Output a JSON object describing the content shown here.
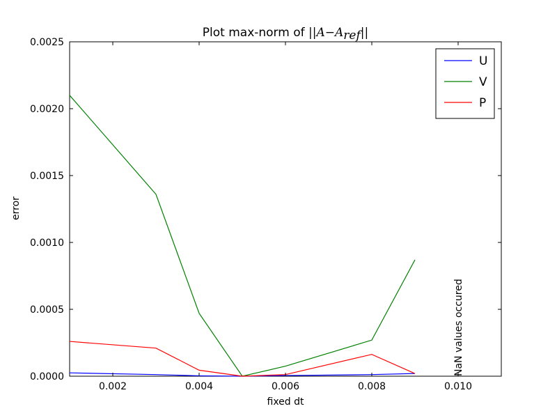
{
  "chart_data": {
    "type": "line",
    "title": "Plot max-norm of ",
    "title_math": "||A−A",
    "title_math_sub": "ref",
    "title_math_end": "||",
    "xlabel": "fixed dt",
    "ylabel": "error",
    "xlim": [
      0.001,
      0.011
    ],
    "ylim": [
      0.0,
      0.0025
    ],
    "xticks": [
      0.002,
      0.004,
      0.006,
      0.008,
      0.01
    ],
    "xtick_labels": [
      "0.002",
      "0.004",
      "0.006",
      "0.008",
      "0.010"
    ],
    "yticks": [
      0.0,
      0.0005,
      0.001,
      0.0015,
      0.002,
      0.0025
    ],
    "ytick_labels": [
      "0.0000",
      "0.0005",
      "0.0010",
      "0.0015",
      "0.0020",
      "0.0025"
    ],
    "x": [
      0.001,
      0.003,
      0.004,
      0.005,
      0.006,
      0.008,
      0.009
    ],
    "series": [
      {
        "name": "U",
        "color": "#0000ff",
        "values": [
          2.5e-05,
          1.2e-05,
          3e-06,
          0.0,
          5e-06,
          1.2e-05,
          2e-05
        ]
      },
      {
        "name": "V",
        "color": "#008000",
        "values": [
          0.0021,
          0.00136,
          0.00047,
          0.0,
          7.5e-05,
          0.00027,
          0.00087
        ]
      },
      {
        "name": "P",
        "color": "#ff0000",
        "values": [
          0.00026,
          0.00021,
          4.5e-05,
          0.0,
          1.2e-05,
          0.000163,
          2e-05
        ]
      }
    ],
    "legend_position": "top-right",
    "grid": false,
    "annotations": [
      {
        "text": "NaN values occured",
        "x": 0.01,
        "y": 0.0,
        "rotation": "vertical"
      }
    ]
  }
}
